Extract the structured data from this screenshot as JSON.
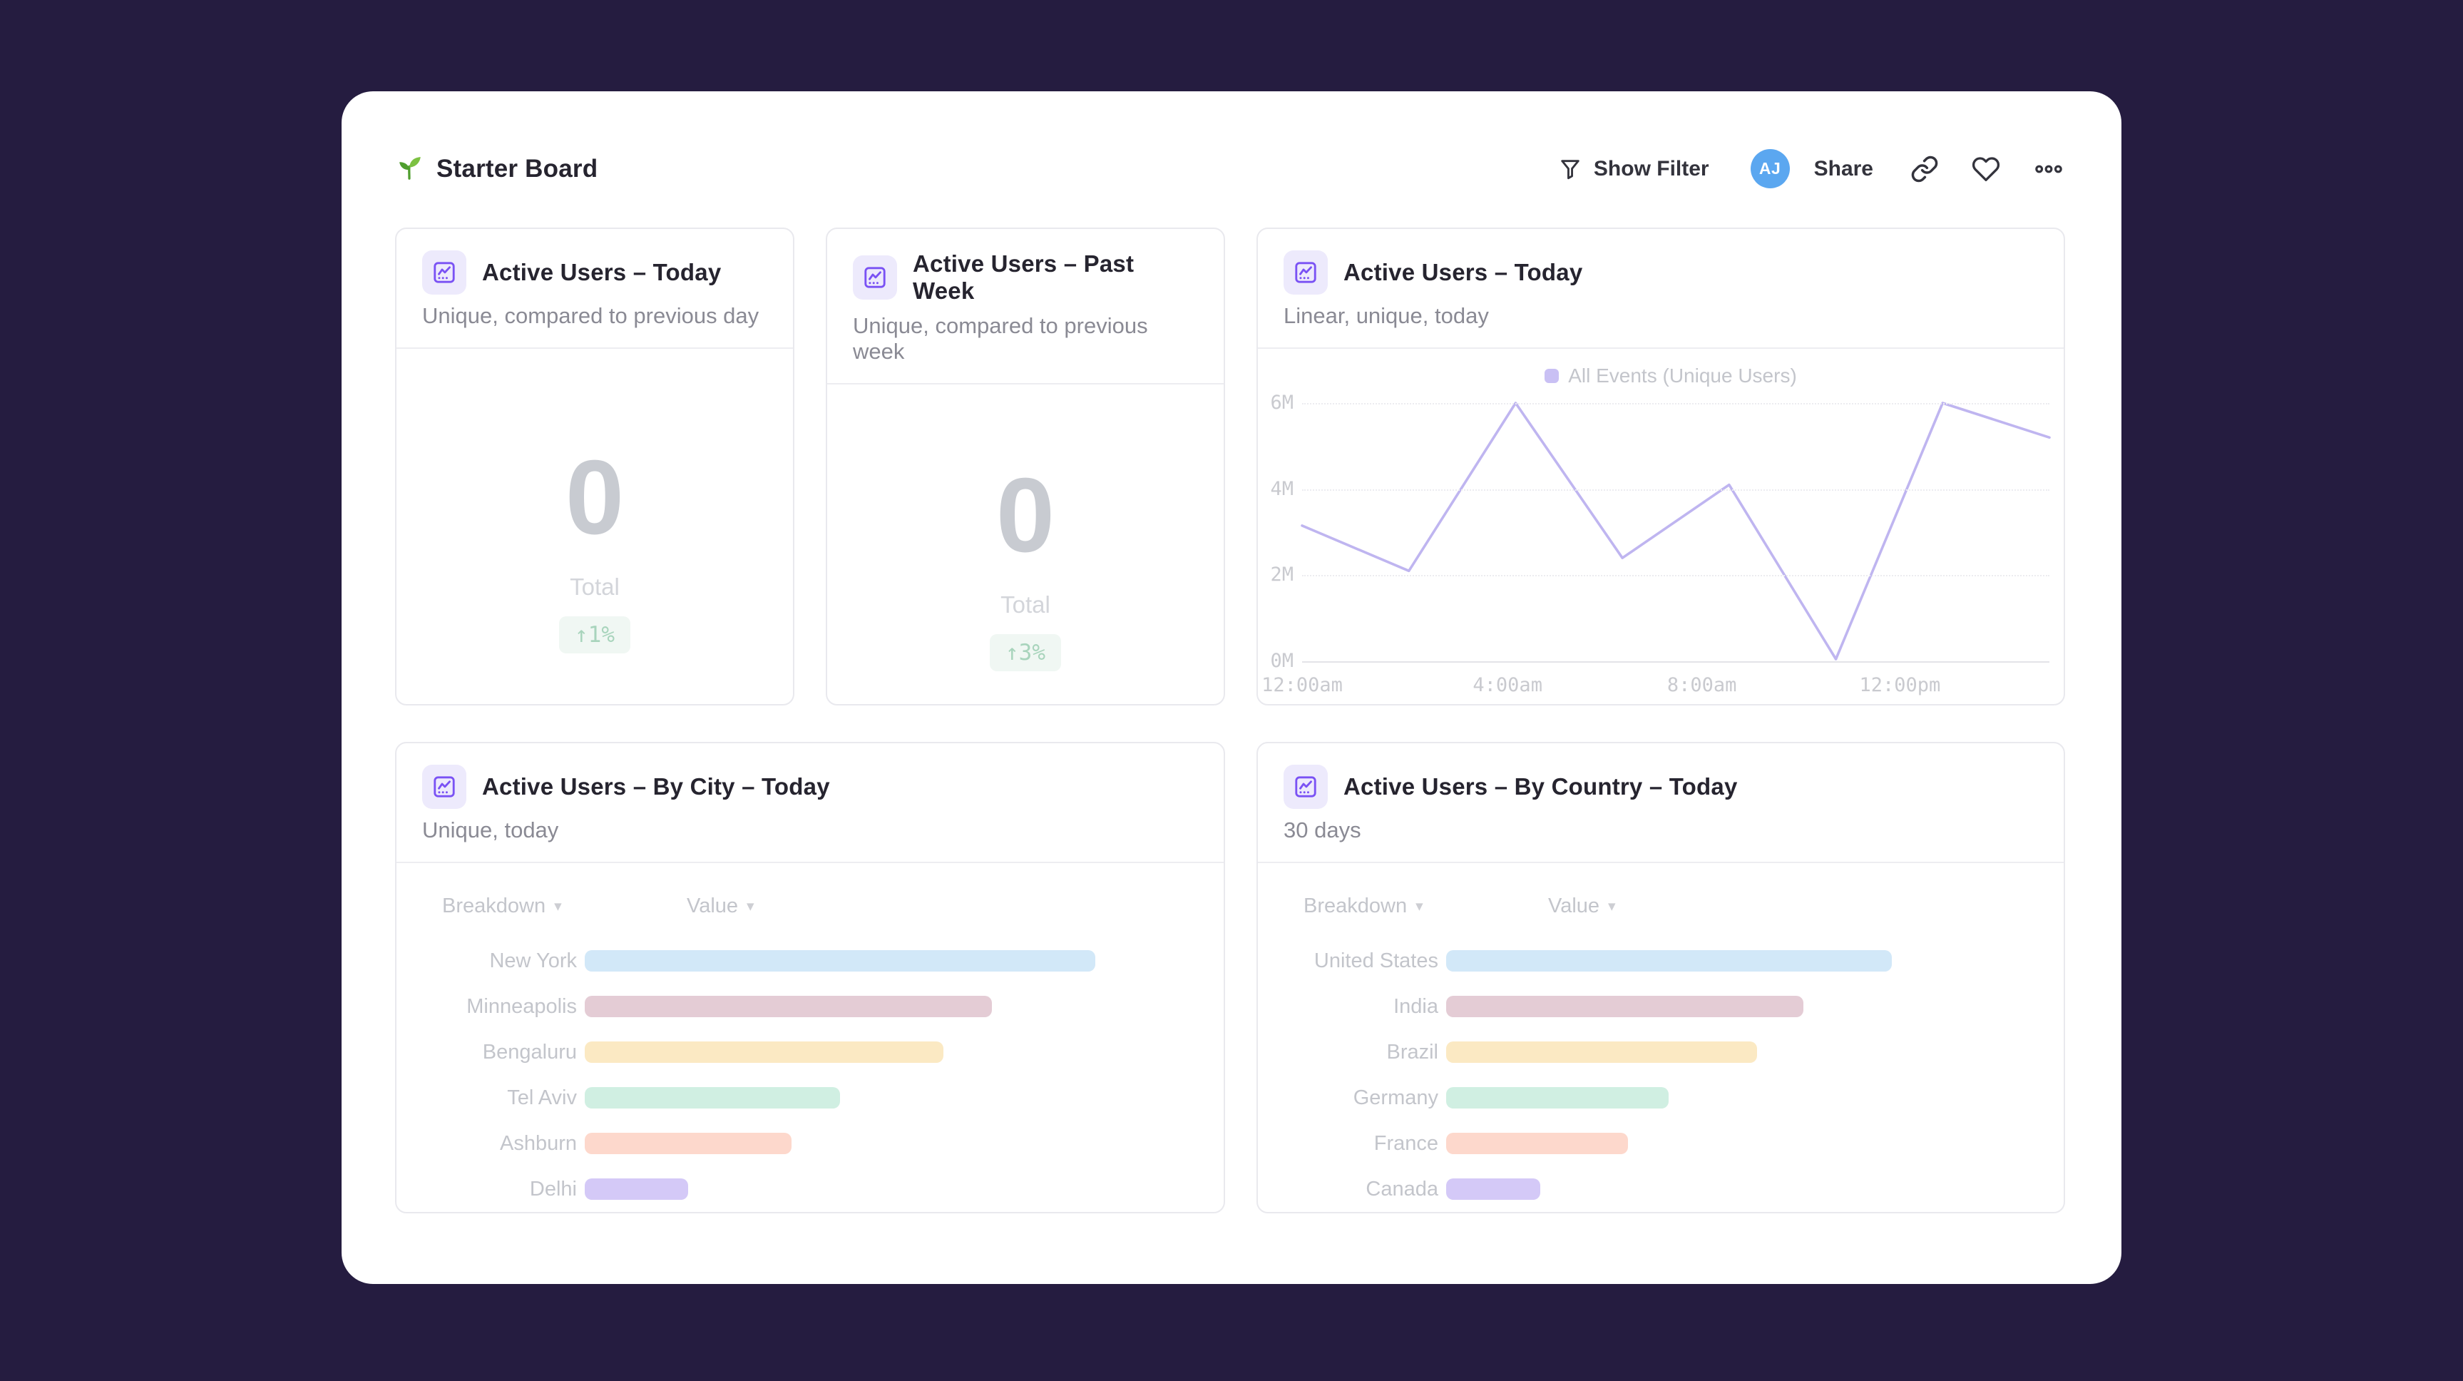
{
  "colors": {
    "page_bg": "#251c40",
    "panel_bg": "#ffffff",
    "accent_purple": "#7a52f4",
    "chip_bg": "#edeafc",
    "avatar_bg": "#5ba7f0",
    "badge_bg": "#f0f7f3",
    "badge_text": "#a8d4bc",
    "card_border": "#e9e9ee",
    "divider": "#ededf1",
    "title_color": "#26242f",
    "subtitle_color": "#8a8a94",
    "faded_text": "#c3c5cb",
    "axis_text": "#c9cacf",
    "value_text": "#c8cbd1",
    "value_label_text": "#d3d5da",
    "line_color": "#bfb5f0"
  },
  "glyphs": {
    "sort": "▾"
  },
  "header": {
    "title": "Starter Board",
    "show_filter_label": "Show Filter",
    "avatar_initials": "AJ",
    "share_label": "Share"
  },
  "kpi_cards": [
    {
      "title": "Active Users – Today",
      "subtitle": "Unique, compared to previous day",
      "value": "0",
      "value_label": "Total",
      "delta": "↑1%"
    },
    {
      "title": "Active Users – Past Week",
      "subtitle": "Unique, compared to previous week",
      "value": "0",
      "value_label": "Total",
      "delta": "↑3%"
    }
  ],
  "line_card": {
    "title": "Active Users – Today",
    "subtitle": "Linear, unique, today"
  },
  "city_card": {
    "title": "Active Users – By City – Today",
    "subtitle": "Unique, today",
    "breakdown_header": "Breakdown",
    "value_header": "Value"
  },
  "country_card": {
    "title": "Active Users – By Country – Today",
    "subtitle": "30 days",
    "breakdown_header": "Breakdown",
    "value_header": "Value"
  },
  "chart_data": [
    {
      "type": "line",
      "title": "Active Users – Today",
      "legend": [
        "All Events (Unique Users)"
      ],
      "legend_position": "top",
      "legend_swatch_color": "#c9c0f4",
      "color": "#bfb5f0",
      "grid": true,
      "unit": "M",
      "ylim": [
        0,
        6
      ],
      "y_ticks": [
        "0M",
        "2M",
        "4M",
        "6M"
      ],
      "values_millions": [
        3.15,
        2.1,
        6.0,
        2.4,
        4.1,
        0.05,
        6.0,
        5.2
      ],
      "x_ticks": [
        {
          "label": "12:00am",
          "pos_pct": 0
        },
        {
          "label": "4:00am",
          "pos_pct": 27.5
        },
        {
          "label": "8:00am",
          "pos_pct": 53.5
        },
        {
          "label": "12:00pm",
          "pos_pct": 80
        }
      ]
    },
    {
      "type": "bar",
      "orientation": "horizontal",
      "title": "Active Users – By City – Today",
      "categories": [
        "New York",
        "Minneapolis",
        "Bengaluru",
        "Tel Aviv",
        "Ashburn",
        "Delhi"
      ],
      "relative_values_pct_of_max": [
        100,
        80,
        70,
        50,
        41,
        20
      ],
      "bar_width_pct": [
        84,
        67,
        59,
        42,
        34,
        17
      ],
      "bar_colors": [
        "#d2e8f8",
        "#e4ccd5",
        "#fbe9c3",
        "#d0efe2",
        "#fdd8cc",
        "#d4c9f7"
      ]
    },
    {
      "type": "bar",
      "orientation": "horizontal",
      "title": "Active Users – By Country – Today",
      "categories": [
        "United States",
        "India",
        "Brazil",
        "Germany",
        "France",
        "Canada"
      ],
      "relative_values_pct_of_max": [
        100,
        80,
        69,
        50,
        40,
        20
      ],
      "bar_width_pct": [
        76,
        61,
        53,
        38,
        31,
        16
      ],
      "bar_colors": [
        "#d2e8f8",
        "#e4ccd5",
        "#fbe9c3",
        "#d0efe2",
        "#fdd8cc",
        "#d4c9f7"
      ]
    }
  ]
}
